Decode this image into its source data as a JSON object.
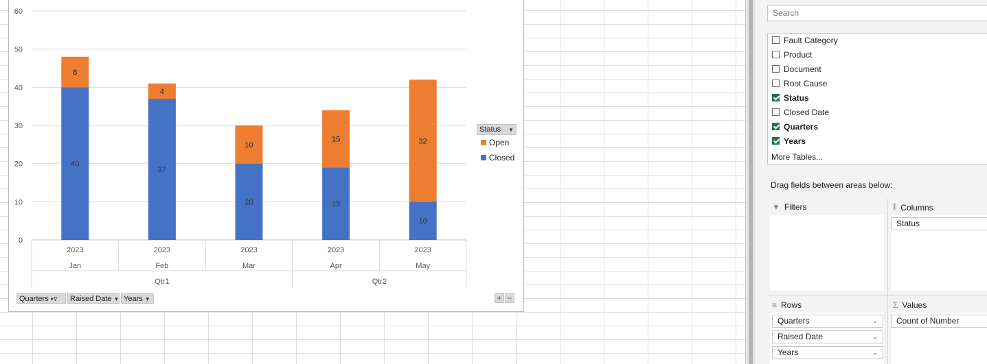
{
  "chart_data": {
    "type": "bar",
    "stacked": true,
    "categories": [
      "Jan",
      "Feb",
      "Mar",
      "Apr",
      "May"
    ],
    "category_years": [
      "2023",
      "2023",
      "2023",
      "2023",
      "2023"
    ],
    "groups": [
      {
        "label": "Qtr1",
        "span": 3
      },
      {
        "label": "Qtr2",
        "span": 2
      }
    ],
    "series": [
      {
        "name": "Closed",
        "color": "#4472C4",
        "values": [
          40,
          37,
          20,
          19,
          10
        ]
      },
      {
        "name": "Open",
        "color": "#ED7D31",
        "values": [
          8,
          4,
          10,
          15,
          32
        ]
      }
    ],
    "ylim": [
      0,
      60
    ],
    "yticks": [
      "0",
      "10",
      "20",
      "30",
      "40",
      "50",
      "60"
    ],
    "grid": true,
    "legend_title": "Status",
    "legend": [
      {
        "name": "Open",
        "color": "#ED7D31"
      },
      {
        "name": "Closed",
        "color": "#4472C4"
      }
    ]
  },
  "chart_buttons": {
    "quarters": "Quarters",
    "raised_date": "Raised Date",
    "years": "Years",
    "plus": "+",
    "minus": "−"
  },
  "pane": {
    "search_placeholder": "Search",
    "fields": [
      {
        "label": "Fault Category",
        "checked": false
      },
      {
        "label": "Product",
        "checked": false
      },
      {
        "label": "Document",
        "checked": false
      },
      {
        "label": "Root Cause",
        "checked": false
      },
      {
        "label": "Status",
        "checked": true
      },
      {
        "label": "Closed Date",
        "checked": false
      },
      {
        "label": "Quarters",
        "checked": true
      },
      {
        "label": "Years",
        "checked": true
      }
    ],
    "more_tables": "More Tables...",
    "drag_hint": "Drag fields between areas below:",
    "filters_label": "Filters",
    "columns_label": "Columns",
    "rows_label": "Rows",
    "values_label": "Values",
    "columns_items": [
      "Status"
    ],
    "rows_items": [
      "Quarters",
      "Raised Date",
      "Years"
    ],
    "values_items": [
      "Count of Number"
    ]
  }
}
